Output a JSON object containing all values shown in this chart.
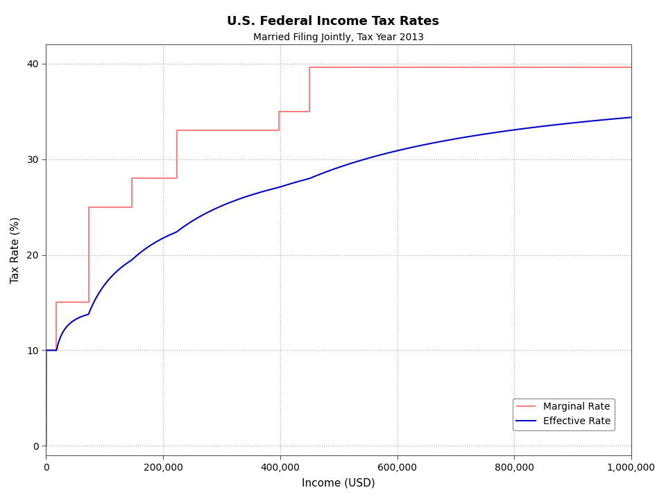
{
  "title": "U.S. Federal Income Tax Rates",
  "subtitle": "Married Filing Jointly, Tax Year 2013",
  "xlabel": "Income (USD)",
  "ylabel": "Tax Rate (%)",
  "xlim": [
    0,
    1000000
  ],
  "ylim": [
    -1,
    42
  ],
  "yticks": [
    0,
    10,
    20,
    30,
    40
  ],
  "xticks": [
    0,
    200000,
    400000,
    600000,
    800000,
    1000000
  ],
  "marginal_color": "#FF8080",
  "effective_color": "#0000CC",
  "background_color": "#FFFFFF",
  "plot_bg_color": "#FFFFFF",
  "grid_color": "#AAAAAA",
  "title_fontsize": 13,
  "subtitle_fontsize": 10,
  "label_fontsize": 11,
  "tick_fontsize": 10,
  "legend_fontsize": 10,
  "brackets_mfj_2013": [
    {
      "rate": 10,
      "min": 0,
      "max": 17850
    },
    {
      "rate": 15,
      "min": 17850,
      "max": 72500
    },
    {
      "rate": 25,
      "min": 72500,
      "max": 146400
    },
    {
      "rate": 28,
      "min": 146400,
      "max": 223050
    },
    {
      "rate": 33,
      "min": 223050,
      "max": 398350
    },
    {
      "rate": 35,
      "min": 398350,
      "max": 450000
    },
    {
      "rate": 39.6,
      "min": 450000,
      "max": 1000000
    }
  ]
}
